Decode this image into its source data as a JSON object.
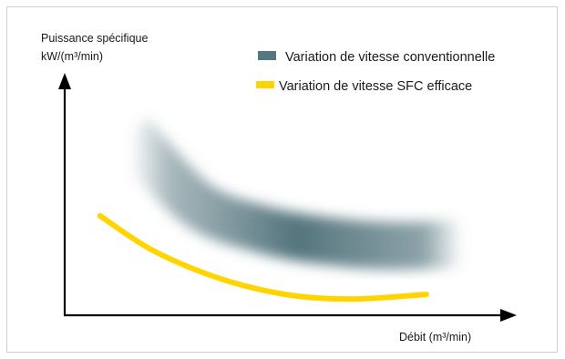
{
  "chart_data": {
    "type": "line",
    "ylabel_line1": "Puissance spécifique",
    "ylabel_line2": "kW/(m³/min)",
    "xlabel": "Débit (m³/min)",
    "legend_position": "top-right",
    "series": [
      {
        "name": "Variation de vitesse conventionnelle",
        "style": "band",
        "color": "#4e6f78",
        "points": [
          [
            0.15,
            0.78
          ],
          [
            0.3,
            0.48
          ],
          [
            0.45,
            0.37
          ],
          [
            0.6,
            0.32
          ],
          [
            0.75,
            0.3
          ],
          [
            0.9,
            0.31
          ]
        ]
      },
      {
        "name": "Variation de vitesse SFC efficace",
        "style": "line",
        "color": "#ffd400",
        "points": [
          [
            0.08,
            0.43
          ],
          [
            0.2,
            0.28
          ],
          [
            0.35,
            0.16
          ],
          [
            0.5,
            0.09
          ],
          [
            0.65,
            0.07
          ],
          [
            0.82,
            0.09
          ]
        ]
      }
    ]
  }
}
